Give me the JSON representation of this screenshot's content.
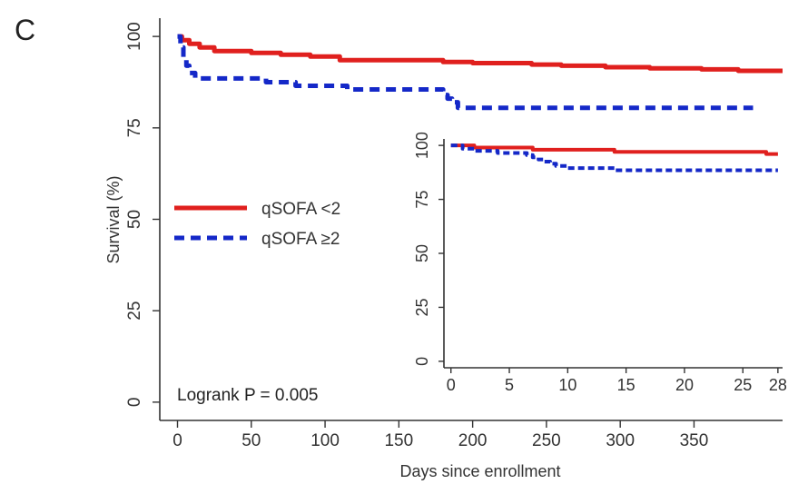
{
  "panel_label": "C",
  "annotation": "Logrank P = 0.005",
  "colors": {
    "series_1": "#e0201e",
    "series_2": "#1428c8",
    "axis": "#333333"
  },
  "chart_data": [
    {
      "type": "line",
      "title": "",
      "xlabel": "Days since enrollment",
      "ylabel": "Survival (%)",
      "xlim": [
        -12,
        410
      ],
      "ylim": [
        -5,
        105
      ],
      "xticks": [
        0,
        50,
        100,
        150,
        200,
        250,
        300,
        350
      ],
      "yticks": [
        0,
        25,
        50,
        75,
        100
      ],
      "legend": "left",
      "series": [
        {
          "name": "qSOFA <2",
          "color": "#e0201e",
          "style": "solid",
          "x": [
            0,
            3,
            3,
            8,
            8,
            15,
            15,
            25,
            25,
            50,
            50,
            70,
            70,
            90,
            90,
            110,
            110,
            180,
            180,
            200,
            200,
            240,
            240,
            260,
            260,
            290,
            290,
            320,
            320,
            355,
            355,
            380,
            380,
            410
          ],
          "y": [
            100,
            100,
            99,
            99,
            98,
            98,
            97,
            97,
            96,
            96,
            95.5,
            95.5,
            95,
            95,
            94.5,
            94.5,
            93.5,
            93.5,
            93,
            93,
            92.7,
            92.7,
            92.3,
            92.3,
            92,
            92,
            91.6,
            91.6,
            91.3,
            91.3,
            91,
            91,
            90.6,
            90.6
          ]
        },
        {
          "name": "qSOFA ≥2",
          "color": "#1428c8",
          "style": "dashed",
          "x": [
            0,
            2,
            2,
            4,
            4,
            6,
            6,
            8,
            8,
            12,
            12,
            60,
            60,
            80,
            80,
            115,
            115,
            180,
            180,
            183,
            183,
            186,
            186,
            190,
            190,
            390
          ],
          "y": [
            100,
            100,
            97,
            97,
            94,
            94,
            92,
            92,
            90,
            90,
            88.5,
            88.5,
            87.5,
            87.5,
            86.5,
            86.5,
            85.5,
            85.5,
            84,
            84,
            83,
            83,
            82,
            82,
            80.5,
            80.5
          ]
        }
      ]
    },
    {
      "type": "line",
      "title": "",
      "xlabel": "",
      "ylabel": "",
      "xlim": [
        -0.6,
        28.4
      ],
      "ylim": [
        -3,
        103
      ],
      "xticks": [
        0,
        5,
        10,
        15,
        20,
        25,
        28
      ],
      "yticks": [
        0,
        25,
        50,
        75,
        100
      ],
      "series": [
        {
          "color": "#e0201e",
          "style": "solid",
          "x": [
            0,
            2,
            2,
            7,
            7,
            14,
            14,
            27,
            27,
            28
          ],
          "y": [
            100,
            100,
            99,
            99,
            98,
            98,
            97,
            97,
            96,
            96
          ]
        },
        {
          "color": "#1428c8",
          "style": "dashed",
          "x": [
            0,
            1,
            1,
            2,
            2,
            4,
            4,
            6.5,
            6.5,
            7,
            7,
            7.5,
            7.5,
            8,
            8,
            8.5,
            8.5,
            9,
            9,
            10,
            10,
            14,
            14,
            28
          ],
          "y": [
            100,
            100,
            98.5,
            98.5,
            97.5,
            97.5,
            96.5,
            96.5,
            95.5,
            95.5,
            94.5,
            94.5,
            93.5,
            93.5,
            92.5,
            92.5,
            91.5,
            91.5,
            90.5,
            90.5,
            89.5,
            89.5,
            88.5,
            88.5
          ]
        }
      ]
    }
  ]
}
